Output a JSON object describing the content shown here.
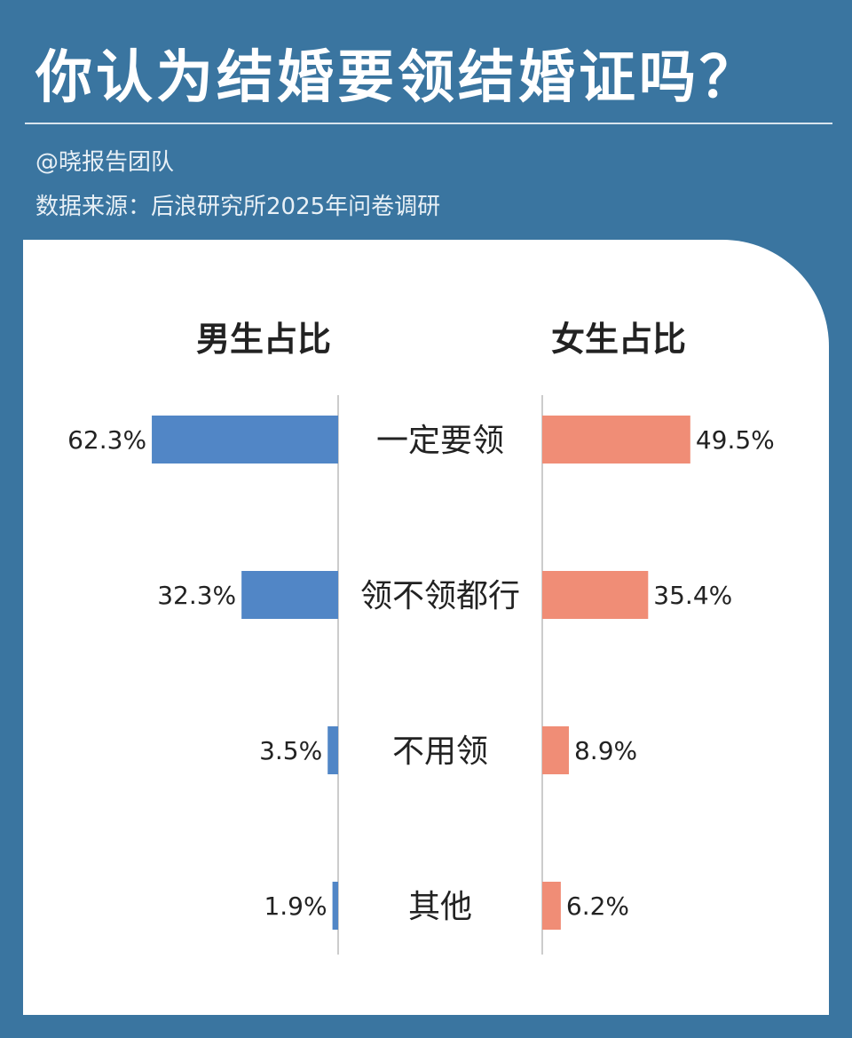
{
  "header": {
    "title": "你认为结婚要领结婚证吗？",
    "author": "@晓报告团队",
    "source": "数据来源：后浪研究所2025年问卷调研"
  },
  "colors": {
    "background": "#3a75a0",
    "male": "#5186c6",
    "female": "#f08d76"
  },
  "chart_data": {
    "type": "bar",
    "orientation": "horizontal-butterfly",
    "categories": [
      "一定要领",
      "领不领都行",
      "不用领",
      "其他"
    ],
    "series": [
      {
        "name": "男生占比",
        "values": [
          62.3,
          32.3,
          3.5,
          1.9
        ],
        "labels": [
          "62.3%",
          "32.3%",
          "3.5%",
          "1.9%"
        ]
      },
      {
        "name": "女生占比",
        "values": [
          49.5,
          35.4,
          8.9,
          6.2
        ],
        "labels": [
          "49.5%",
          "35.4%",
          "8.9%",
          "6.2%"
        ]
      }
    ],
    "unit": "%"
  }
}
